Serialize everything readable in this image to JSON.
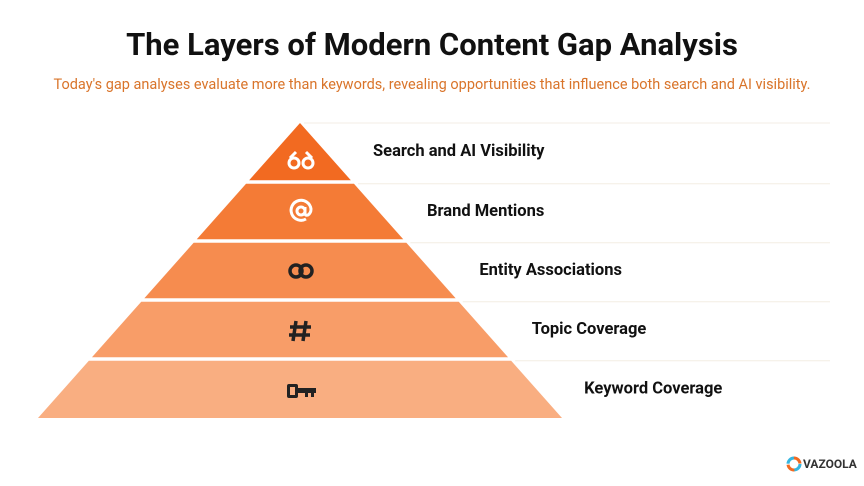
{
  "header": {
    "title": "The Layers of Modern Content Gap Analysis",
    "subtitle": "Today's gap analyses evaluate more than keywords, revealing opportunities that influence both search and AI visibility."
  },
  "layers": [
    {
      "label": "Search and AI Visibility",
      "color": "#f26a21"
    },
    {
      "label": "Brand Mentions",
      "color": "#f47b36"
    },
    {
      "label": "Entity Associations",
      "color": "#f68c4f"
    },
    {
      "label": "Topic Coverage",
      "color": "#f89d68"
    },
    {
      "label": "Keyword Coverage",
      "color": "#f9ae81"
    }
  ],
  "footer": {
    "brand": "VAZOOLA"
  }
}
